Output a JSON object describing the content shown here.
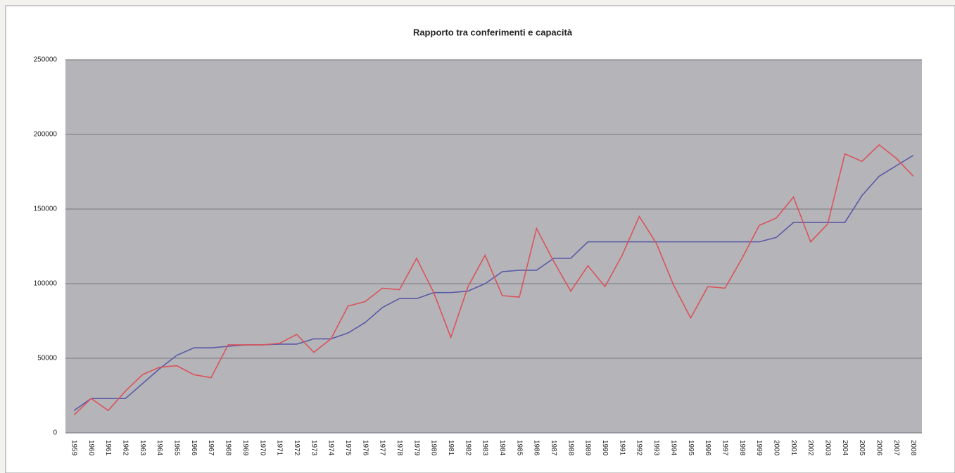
{
  "chart_data": {
    "type": "line",
    "title": "Rapporto tra conferimenti e capacità",
    "categories": [
      "1959",
      "1960",
      "1961",
      "1962",
      "1963",
      "1964",
      "1965",
      "1966",
      "1967",
      "1968",
      "1969",
      "1970",
      "1971",
      "1972",
      "1973",
      "1974",
      "1975",
      "1976",
      "1977",
      "1978",
      "1979",
      "1980",
      "1981",
      "1982",
      "1983",
      "1984",
      "1985",
      "1986",
      "1987",
      "1988",
      "1989",
      "1990",
      "1991",
      "1992",
      "1993",
      "1994",
      "1995",
      "1996",
      "1997",
      "1998",
      "1999",
      "2000",
      "2001",
      "2002",
      "2003",
      "2004",
      "2005",
      "2006",
      "2007",
      "2008"
    ],
    "series": [
      {
        "color": "#5a5aa8",
        "values": [
          15000,
          23000,
          23000,
          23000,
          33000,
          43000,
          52000,
          57000,
          57000,
          58000,
          59000,
          59000,
          59500,
          59500,
          63000,
          63000,
          67000,
          74000,
          84000,
          90000,
          90000,
          94000,
          94000,
          95000,
          100000,
          108000,
          109000,
          109000,
          117000,
          117000,
          128000,
          128000,
          128000,
          128000,
          128000,
          128000,
          128000,
          128000,
          128000,
          128000,
          128000,
          131000,
          141000,
          141000,
          141000,
          141000,
          159000,
          172000,
          179000,
          186000
        ]
      },
      {
        "color": "#d9535b",
        "values": [
          12000,
          23000,
          15000,
          28000,
          39000,
          44000,
          45000,
          39000,
          37000,
          59000,
          59000,
          59000,
          60000,
          66000,
          54000,
          63000,
          85000,
          88000,
          97000,
          96000,
          117000,
          94000,
          64000,
          98000,
          119000,
          92000,
          91000,
          137000,
          115000,
          95000,
          112000,
          98000,
          119000,
          145000,
          127000,
          99000,
          77000,
          98000,
          97000,
          117000,
          139000,
          144000,
          158000,
          128000,
          140000,
          187000,
          182000,
          193000,
          184000,
          172000
        ]
      }
    ],
    "ylim": [
      0,
      250000
    ],
    "yticks": [
      0,
      50000,
      100000,
      150000,
      200000,
      250000
    ],
    "grid": true
  }
}
